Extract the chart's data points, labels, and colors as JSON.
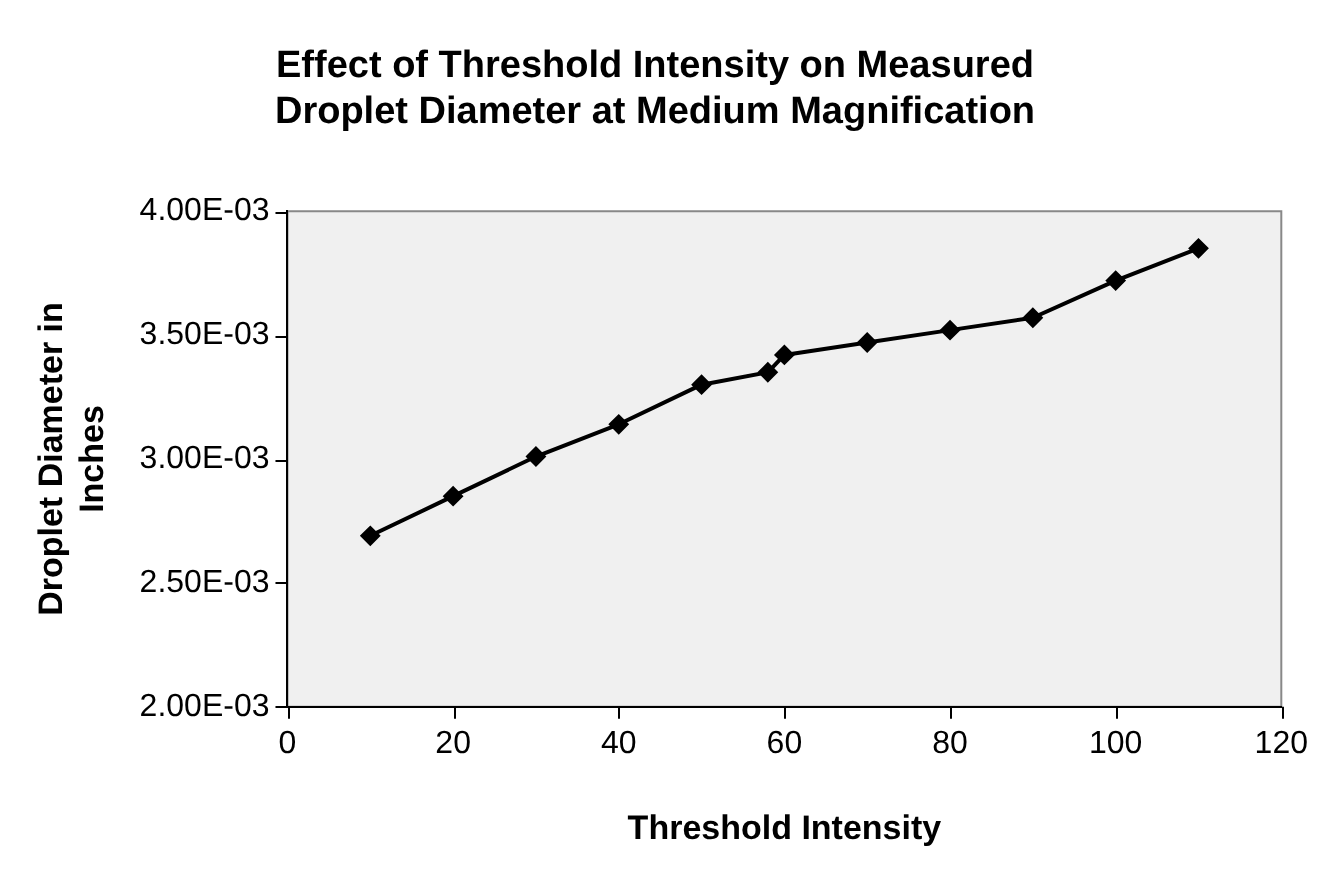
{
  "chart_data": {
    "type": "line",
    "title": "Effect of Threshold Intensity on Measured Droplet Diameter at Medium Magnification",
    "xlabel": "Threshold Intensity",
    "ylabel": "Droplet Diameter in Inches",
    "x": [
      10,
      20,
      30,
      40,
      50,
      58,
      60,
      70,
      80,
      90,
      100,
      110
    ],
    "series": [
      {
        "color": "#000000",
        "values": [
          0.00269,
          0.00285,
          0.00301,
          0.00314,
          0.0033,
          0.00335,
          0.00342,
          0.00347,
          0.00352,
          0.00357,
          0.00372,
          0.00385
        ]
      }
    ],
    "xlim": [
      0,
      120
    ],
    "xticks": [
      0,
      20,
      40,
      60,
      80,
      100,
      120
    ],
    "ylim": [
      0.002,
      0.004
    ],
    "yticks": [
      {
        "value": 0.002,
        "label": "2.00E-03"
      },
      {
        "value": 0.0025,
        "label": "2.50E-03"
      },
      {
        "value": 0.003,
        "label": "3.00E-03"
      },
      {
        "value": 0.0035,
        "label": "3.50E-03"
      },
      {
        "value": 0.004,
        "label": "4.00E-03"
      }
    ],
    "grid": false,
    "legend": false,
    "marker": "diamond",
    "line_style": "solid"
  }
}
